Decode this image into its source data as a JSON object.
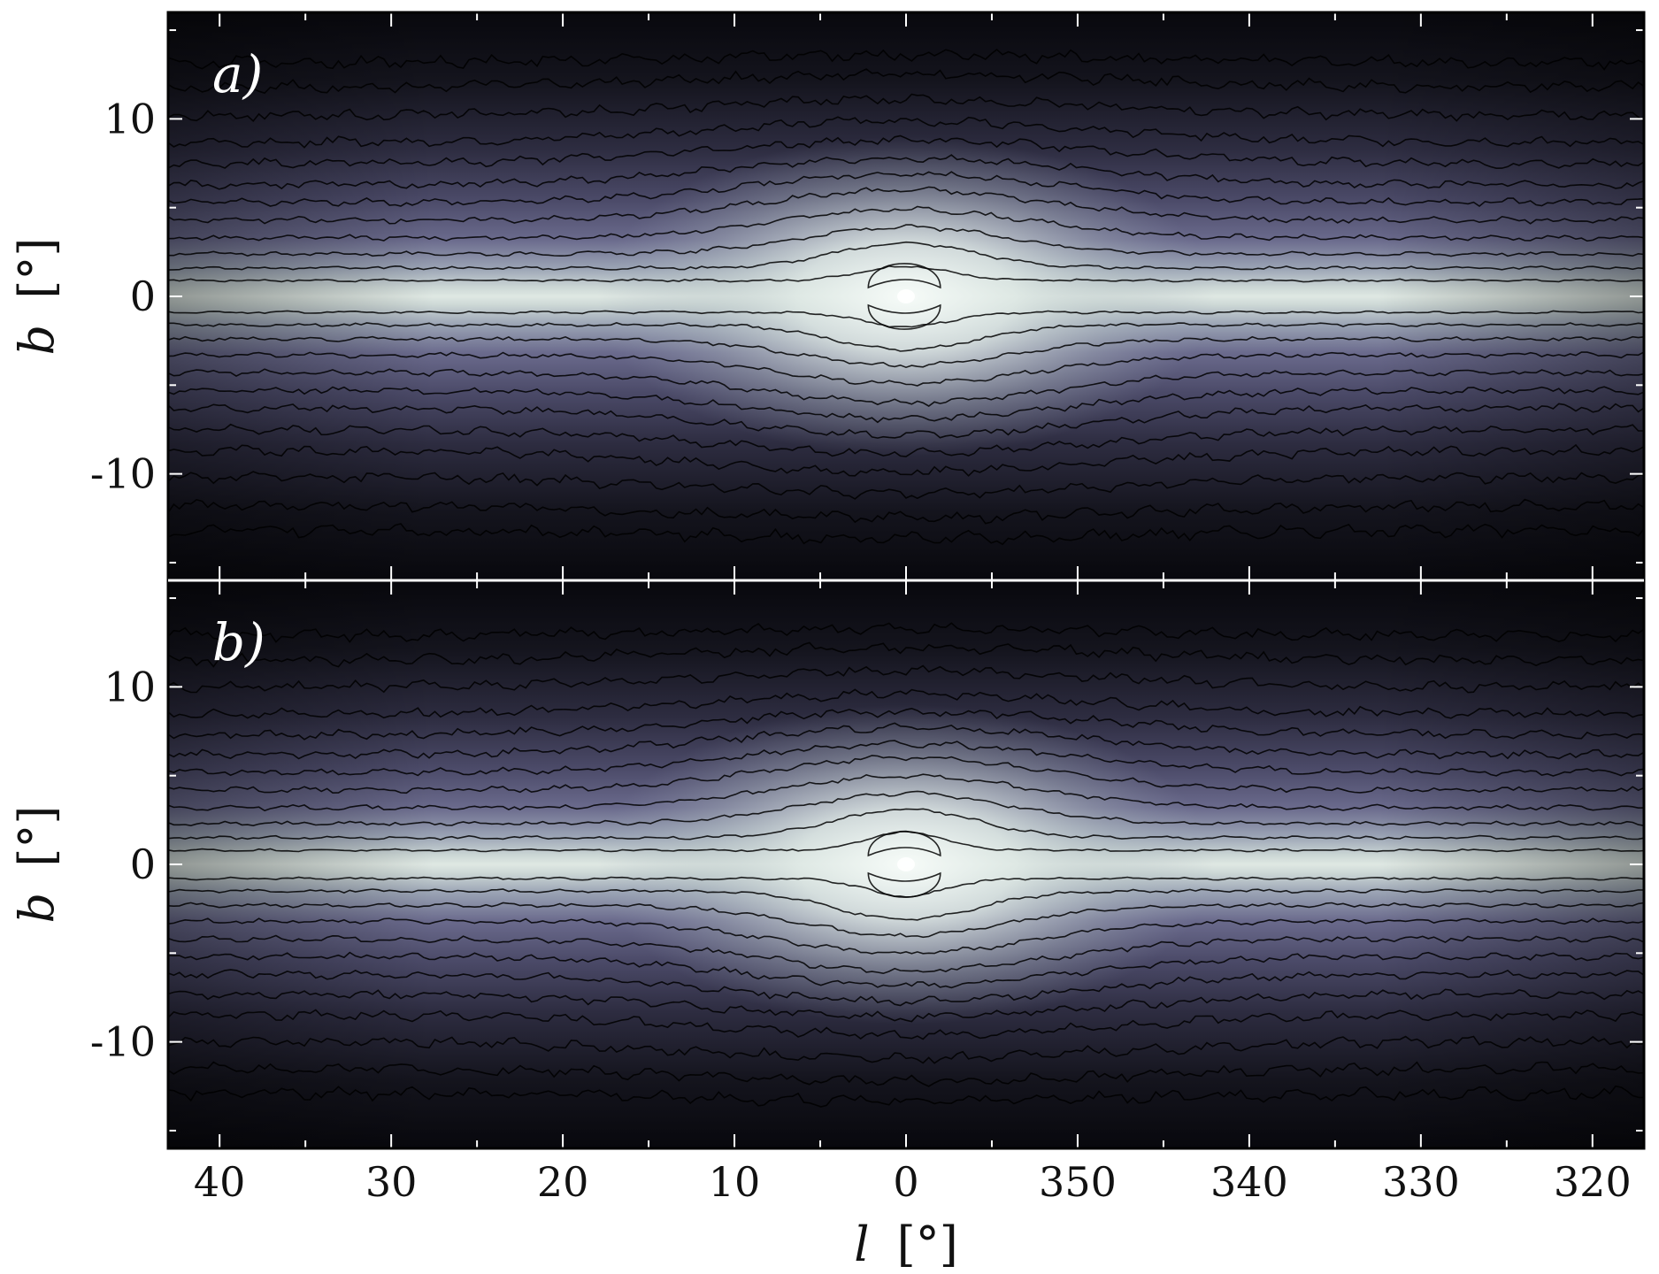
{
  "chart_data": {
    "type": "heatmap",
    "description": "Two stacked sky maps in Galactic coordinates with contours; bright central bulge at (0,0), disk along b=0.",
    "x_axis": {
      "label": "l [°]",
      "label_var": "l",
      "label_unit": "[°]",
      "ticks": [
        40,
        30,
        20,
        10,
        0,
        350,
        340,
        330,
        320
      ],
      "tick_labels": [
        "40",
        "30",
        "20",
        "10",
        "0",
        "350",
        "340",
        "330",
        "320"
      ],
      "range": [
        43,
        317
      ],
      "direction": "decreasing"
    },
    "y_axis": {
      "label": "b [°]",
      "label_var": "b",
      "label_unit": "[°]",
      "ticks": [
        10,
        0,
        -10
      ],
      "tick_labels": [
        "10",
        "0",
        "-10"
      ],
      "range": [
        -16,
        16
      ]
    },
    "panels": [
      {
        "label": "a)",
        "panel_id": "a",
        "contour_half_widths_deg": [
          0.9,
          1.6,
          2.4,
          3.3,
          4.3,
          5.3,
          6.3,
          7.5,
          8.7,
          10.2,
          11.8,
          13.2
        ],
        "bulge_height_deg": [
          0.8,
          1.4,
          1.5,
          1.6,
          1.7,
          1.6,
          1.5,
          1.3,
          1.2,
          0.9,
          0.7,
          0.4
        ],
        "bulge_width_deg": [
          5.5,
          9,
          13,
          16,
          18,
          20,
          22,
          24,
          24,
          25,
          26,
          26
        ]
      },
      {
        "label": "b)",
        "panel_id": "b",
        "contour_half_widths_deg": [
          0.8,
          1.5,
          2.3,
          3.2,
          4.2,
          5.2,
          6.2,
          7.3,
          8.5,
          10.0,
          11.5,
          12.9
        ],
        "bulge_height_deg": [
          1.0,
          1.6,
          1.7,
          1.8,
          1.8,
          1.6,
          1.5,
          1.3,
          1.1,
          0.9,
          0.7,
          0.4
        ],
        "bulge_width_deg": [
          5,
          9,
          13,
          16,
          18,
          20,
          22,
          24,
          24,
          25,
          26,
          26
        ]
      }
    ],
    "colormap": [
      "#08080d",
      "#1a1a26",
      "#3b3955",
      "#5f5d80",
      "#8e93a8",
      "#c3cfcf",
      "#eef6f2"
    ]
  }
}
